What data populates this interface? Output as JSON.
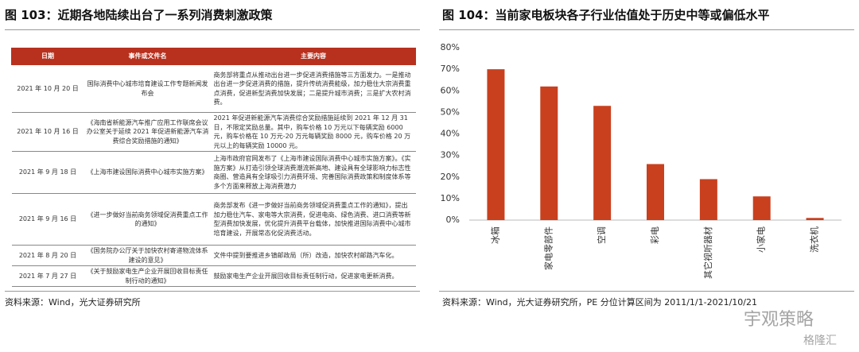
{
  "left_panel": {
    "title": "图 103：近期各地陆续出台了一系列消费刺激政策",
    "table": {
      "header": [
        "日期",
        "事件或文件名",
        "主要内容"
      ],
      "rows": [
        [
          "2021 年 10 月 20 日",
          "国际消费中心城市培育建设工作专题新闻发布会",
          "商务部将重点从推动出台进一步促进消费措施等三方面发力。一是推动出台进一步促进消费的措施，提升传统消费能级，加力稳住大宗消费重点消费，促进新型消费加快发展；二是提升城市消费；三是扩大农村消费。"
        ],
        [
          "2021 年 10 月 16 日",
          "《海南省新能源汽车推广应用工作联席会议办公室关于延续 2021 年促进新能源汽车消费综合奖励措施的通知》",
          "2021 年促进新能源汽车消费综合奖励措施延续到 2021 年 12 月 31 日，不限定奖励总量。其中，购车价格 10 万元以下每辆奖励 6000 元，购车价格在 10 万元-20 万元每辆奖励 8000 元，购车价格 20 万元以上的每辆奖励 10000 元。"
        ],
        [
          "2021 年 9 月 18 日",
          "《上海市建设国际消费中心城市实施方案》",
          "上海市政府官网发布了《上海市建设国际消费中心城市实施方案》。《实施方案》从打造引领全球消费潮流新高地、建设具有全球影响力标志性商圈、营造具有全球吸引力消费环境、完善国际消费政策和制度体系等多个方面来释放上海消费潜力"
        ],
        [
          "2021 年 9 月 16 日",
          "《进一步做好当前商务领域促消费重点工作的通知》",
          "商务部发布《进一步做好当前商务领域促消费重点工作的通知》，提出加力稳住汽车、家电等大宗消费，促进电商、绿色消费、进口消费等新型消费加快发展，优化提升消费平台载体，加快推进国际消费中心城市培育建设，开展常态化促消费活动。"
        ],
        [
          "2021 年 8 月 20 日",
          "《国务院办公厅关于加快农村寄递物流体系建设的意见》",
          "文件中提到要推进乡镇邮政局（所）改造，加快农村邮路汽车化。"
        ],
        [
          "2021 年 7 月 27 日",
          "《关于鼓励家电生产企业开展回收目标责任制行动的通知》",
          "鼓励家电生产企业开展回收目标责任制行动，促进家电更新消费。"
        ]
      ]
    },
    "source": "资料来源：Wind，光大证券研究所"
  },
  "chart_data": {
    "type": "bar",
    "title": "图 104：当前家电板块各子行业估值处于历史中等或偏低水平",
    "categories": [
      "冰箱",
      "家电零部件",
      "空调",
      "彩电",
      "其它视听器材",
      "小家电",
      "洗衣机"
    ],
    "values": [
      70,
      62,
      53,
      26,
      19,
      11,
      1
    ],
    "color": "#c9401f",
    "ylim": [
      0,
      80
    ],
    "yticks": [
      {
        "value": 0,
        "label": "0%"
      },
      {
        "value": 10,
        "label": "10%"
      },
      {
        "value": 20,
        "label": "20%"
      },
      {
        "value": 30,
        "label": "30%"
      },
      {
        "value": 40,
        "label": "40%"
      },
      {
        "value": 50,
        "label": "50%"
      },
      {
        "value": 60,
        "label": "60%"
      },
      {
        "value": 70,
        "label": "70%"
      },
      {
        "value": 80,
        "label": "80%"
      }
    ],
    "grid": false,
    "source": "资料来源：Wind，光大证券研究所，PE 分位计算区间为 2011/1/1-2021/10/21"
  },
  "watermark": {
    "account": "宇观策略",
    "brand": "格隆汇"
  }
}
